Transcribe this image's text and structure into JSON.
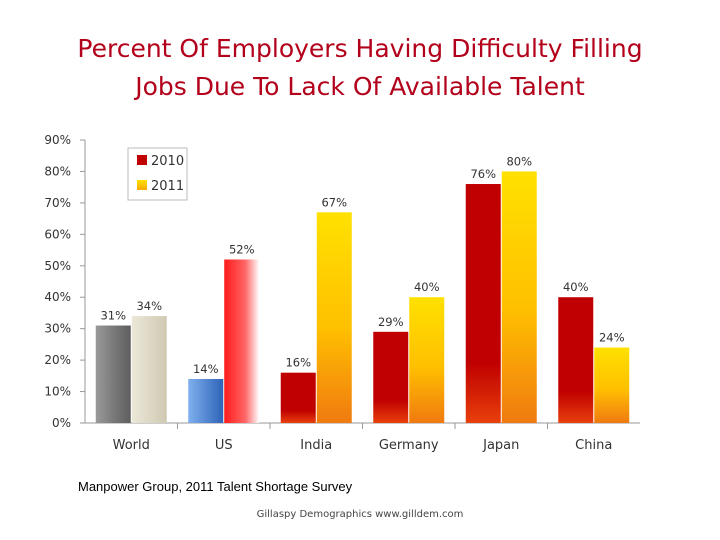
{
  "title": {
    "line1": "Percent Of Employers Having Difficulty Filling",
    "line2": "Jobs Due To Lack Of Available Talent"
  },
  "source": "Manpower Group, 2011 Talent Shortage Survey",
  "footer": "Gillaspy Demographics www.gilldem.com",
  "chart_data": {
    "type": "bar",
    "title": "Percent Of Employers Having Difficulty Filling Jobs Due To Lack Of Available Talent",
    "xlabel": "",
    "ylabel": "",
    "ylim": [
      0,
      90
    ],
    "yticks": [
      "0%",
      "10%",
      "20%",
      "30%",
      "40%",
      "50%",
      "60%",
      "70%",
      "80%",
      "90%"
    ],
    "categories": [
      "World",
      "US",
      "India",
      "Germany",
      "Japan",
      "China"
    ],
    "series": [
      {
        "name": "2010",
        "values": [
          31,
          14,
          16,
          29,
          76,
          40
        ],
        "labels": [
          "31%",
          "14%",
          "16%",
          "29%",
          "76%",
          "40%"
        ]
      },
      {
        "name": "2011",
        "values": [
          34,
          52,
          67,
          40,
          80,
          24
        ],
        "labels": [
          "34%",
          "52%",
          "67%",
          "40%",
          "80%",
          "24%"
        ]
      }
    ],
    "legend": {
      "position": "top-left",
      "entries": [
        "2010",
        "2011"
      ]
    },
    "colors": {
      "2010": "#c00000",
      "2011": "#ffd700",
      "world_2010": "#7f7f7f",
      "world_2011": "#ddd8c4",
      "us_2010": "#5b8fd6",
      "us_2011": "#ff3030"
    }
  }
}
